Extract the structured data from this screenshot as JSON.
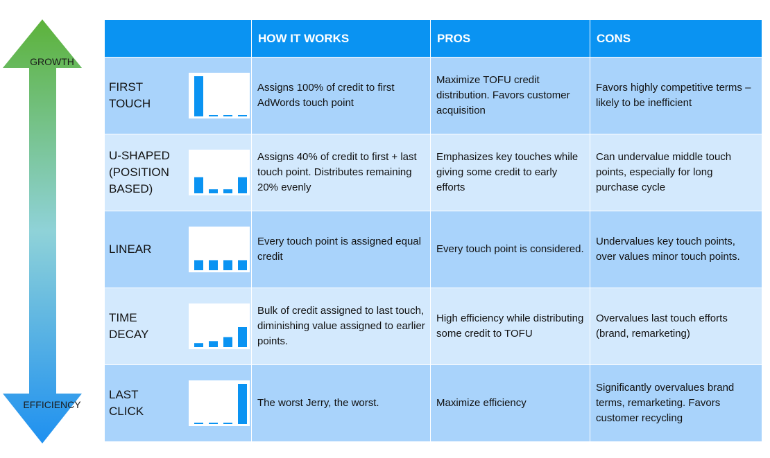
{
  "arrow": {
    "top_label": "GROWTH",
    "bottom_label": "EFFICIENCY",
    "top_color": "#5cb23a",
    "bottom_color": "#1e90f0"
  },
  "colors": {
    "header": "#0a93f2",
    "row_dark": "#a9d3fb",
    "row_light": "#d3e9fd",
    "bar": "#0a93f2"
  },
  "headers": [
    "",
    "HOW IT WORKS",
    "PROS",
    "CONS"
  ],
  "rows": [
    {
      "name_lines": [
        "FIRST",
        "TOUCH"
      ],
      "credit_pct": [
        100,
        0,
        0,
        0
      ],
      "how": "Assigns 100% of credit to first AdWords touch point",
      "pros": "Maximize TOFU credit distribution. Favors customer acquisition",
      "cons": "Favors highly competitive terms – likely to be inefficient"
    },
    {
      "name_lines": [
        "U-SHAPED",
        "(POSITION",
        "BASED)"
      ],
      "credit_pct": [
        40,
        10,
        10,
        40
      ],
      "how": "Assigns 40% of credit to first + last touch point. Distributes remaining 20% evenly",
      "pros": "Emphasizes key touches while giving some credit to early efforts",
      "cons": "Can undervalue middle touch points, especially for long purchase cycle"
    },
    {
      "name_lines": [
        "LINEAR"
      ],
      "credit_pct": [
        25,
        25,
        25,
        25
      ],
      "how": "Every touch point is assigned equal credit",
      "pros": "Every touch point is considered.",
      "cons": "Undervalues key touch points, over values minor touch points."
    },
    {
      "name_lines": [
        "TIME",
        "DECAY"
      ],
      "credit_pct": [
        10,
        15,
        25,
        50
      ],
      "how": "Bulk of credit assigned to last touch, diminishing value assigned to earlier points.",
      "pros": "High efficiency while distributing some credit to TOFU",
      "cons": "Overvalues last touch efforts (brand, remarketing)"
    },
    {
      "name_lines": [
        "LAST",
        "CLICK"
      ],
      "credit_pct": [
        0,
        0,
        0,
        100
      ],
      "how": "The worst Jerry, the worst.",
      "pros": "Maximize efficiency",
      "cons": "Significantly overvalues brand terms, remarketing. Favors customer recycling"
    }
  ]
}
